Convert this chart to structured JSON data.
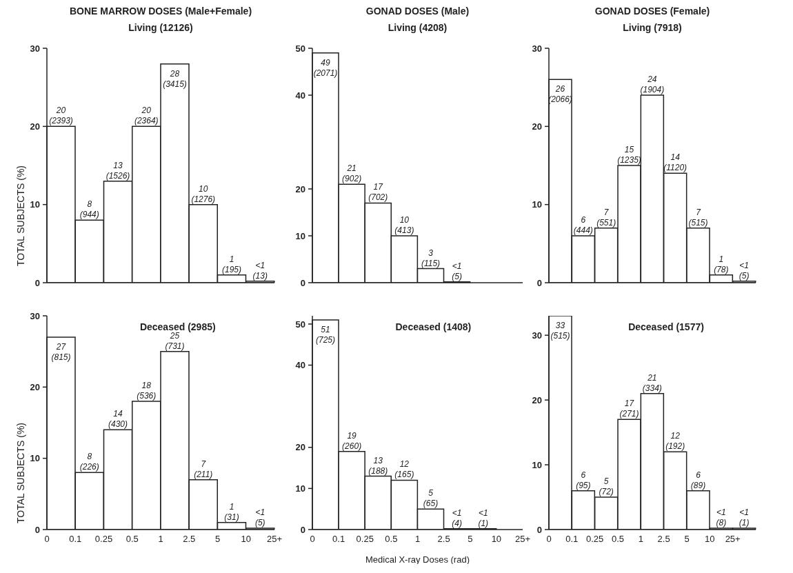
{
  "chart_data": [
    {
      "type": "bar",
      "title": "BONE MARROW DOSES (Male+Female)",
      "subtitle": "Living (12126)",
      "ylabel": "TOTAL SUBJECTS (%)",
      "color": "#ffffff",
      "categories": [
        null,
        null,
        null,
        null,
        null,
        null,
        null,
        null
      ],
      "values": [
        20,
        8,
        13,
        20,
        28,
        10,
        1,
        0.2
      ],
      "value_labels": [
        "20\n(2393)",
        "8\n(944)",
        "13\n(1526)",
        "20\n(2364)",
        "28\n(3415)",
        "10\n(1276)",
        "1\n(195)",
        "<1\n(13)"
      ],
      "ylim": [
        0,
        30
      ],
      "yticks": [
        0,
        10,
        20,
        30
      ]
    },
    {
      "type": "bar",
      "title": "GONAD DOSES (Male)",
      "subtitle": "Living (4208)",
      "color": "#ffffff",
      "categories": [
        null,
        null,
        null,
        null,
        null,
        null,
        null,
        null
      ],
      "values": [
        49,
        21,
        17,
        10,
        3,
        0.2,
        0,
        0
      ],
      "value_labels": [
        "49\n(2071)",
        "21\n(902)",
        "17\n(702)",
        "10\n(413)",
        "3\n(115)",
        "<1\n(5)",
        null,
        null
      ],
      "ylim": [
        0,
        50
      ],
      "yticks": [
        0,
        10,
        20,
        40,
        50
      ]
    },
    {
      "type": "bar",
      "title": "GONAD DOSES (Female)",
      "subtitle": "Living (7918)",
      "color": "#ffffff",
      "categories": [
        null,
        null,
        null,
        null,
        null,
        null,
        null,
        null,
        null
      ],
      "values": [
        26,
        6,
        7,
        15,
        24,
        14,
        7,
        1,
        0.2
      ],
      "value_labels": [
        "26\n(2066)",
        "6\n(444)",
        "7\n(551)",
        "15\n(1235)",
        "24\n(1904)",
        "14\n(1120)",
        "7\n(515)",
        "1\n(78)",
        "<1\n(5)"
      ],
      "ylim": [
        0,
        30
      ],
      "yticks": [
        0,
        10,
        20,
        30
      ]
    },
    {
      "type": "bar",
      "title": "Deceased (2985)",
      "ylabel": "TOTAL SUBJECTS (%)",
      "color": "#ffffff",
      "categories": [
        null,
        null,
        null,
        null,
        null,
        null,
        null,
        null
      ],
      "values": [
        27,
        8,
        14,
        18,
        25,
        7,
        1,
        0.2
      ],
      "value_labels": [
        "27\n(815)",
        "8\n(226)",
        "14\n(430)",
        "18\n(536)",
        "25\n(731)",
        "7\n(211)",
        "1\n(31)",
        "<1\n(5)"
      ],
      "ylim": [
        0,
        30
      ],
      "yticks": [
        0,
        10,
        20,
        30
      ],
      "annotations": [
        "0",
        "0.1",
        "0.25",
        "0.5",
        "1",
        "2.5",
        "5",
        "10",
        "25+"
      ]
    },
    {
      "type": "bar",
      "title": "Deceased (1408)",
      "xlabel": "Medical X-ray Doses (rad)",
      "color": "#ffffff",
      "categories": [
        null,
        null,
        null,
        null,
        null,
        null,
        null,
        null
      ],
      "values": [
        51,
        19,
        13,
        12,
        5,
        0.2,
        0.2,
        0
      ],
      "value_labels": [
        "51\n(725)",
        "19\n(260)",
        "13\n(188)",
        "12\n(165)",
        "5\n(65)",
        "<1\n(4)",
        "<1\n(1)",
        null
      ],
      "ylim": [
        0,
        52
      ],
      "yticks": [
        0,
        10,
        20,
        40,
        50
      ],
      "annotations": [
        "0",
        "0.1",
        "0.25",
        "0.5",
        "1",
        "2.5",
        "5",
        "10",
        "25+"
      ]
    },
    {
      "type": "bar",
      "title": "Deceased (1577)",
      "color": "#ffffff",
      "categories": [
        null,
        null,
        null,
        null,
        null,
        null,
        null,
        null,
        null
      ],
      "values": [
        33,
        6,
        5,
        17,
        21,
        12,
        6,
        0.2,
        0.2
      ],
      "value_labels": [
        "33\n(515)",
        "6\n(95)",
        "5\n(72)",
        "17\n(271)",
        "21\n(334)",
        "12\n(192)",
        "6\n(89)",
        "<1\n(8)",
        "<1\n(1)"
      ],
      "ylim": [
        0,
        33
      ],
      "yticks": [
        0,
        10,
        20,
        30
      ],
      "annotations": [
        "0",
        "0.1",
        "0.25",
        "0.5",
        "1",
        "2.5",
        "5",
        "10",
        "25+"
      ]
    }
  ]
}
